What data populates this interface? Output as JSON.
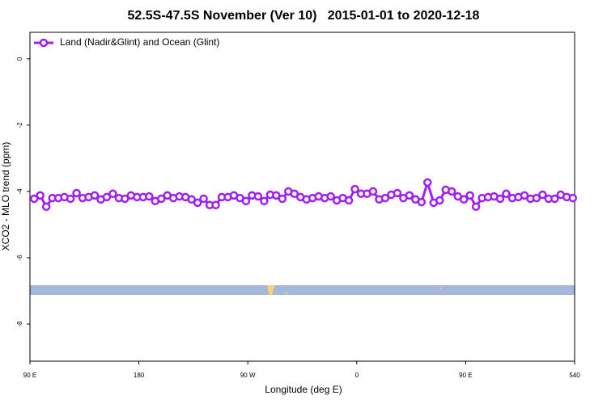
{
  "chart_data": {
    "type": "line",
    "title": "52.5S-47.5S November (Ver 10)   2015-01-01 to 2020-12-18",
    "x_label": "Longitude (deg E)",
    "y_label": "XCO2 - MLO trend (ppm)",
    "xlim": [
      90,
      540
    ],
    "ylim": [
      -9.12,
      0.8
    ],
    "xticks": [
      {
        "value": 90,
        "label": "90 E"
      },
      180,
      {
        "value": 270,
        "label": "90 W"
      },
      {
        "value": 360,
        "label": "0"
      },
      {
        "value": 450,
        "label": "90 E"
      },
      540
    ],
    "yticks": [
      0,
      -2,
      -4,
      -6,
      -8
    ],
    "legend": "top-left",
    "x": [
      93.5,
      98.5,
      103.5,
      108.5,
      113.5,
      118.5,
      123.5,
      128.5,
      133.5,
      138.5,
      143.5,
      148.5,
      153.5,
      158.5,
      163.5,
      168.5,
      173.5,
      178.5,
      183.5,
      188.5,
      193.5,
      198.5,
      203.5,
      208.5,
      213.5,
      218.5,
      223.5,
      228.5,
      233.5,
      238.5,
      243.5,
      248.5,
      253.5,
      258.5,
      263.5,
      268.5,
      273.5,
      278.5,
      283.5,
      288.5,
      293.5,
      298.5,
      303.5,
      308.5,
      313.5,
      318.5,
      323.5,
      328.5,
      333.5,
      338.5,
      343.5,
      348.5,
      353.5,
      358.5,
      363.5,
      368.5,
      373.5,
      378.5,
      383.5,
      388.5,
      393.5,
      398.5,
      403.5,
      408.5,
      413.5,
      418.5,
      423.5,
      428.5,
      433.5,
      438.5,
      443.5,
      448.5,
      453.5,
      458.5,
      463.5,
      468.5,
      473.5,
      478.5,
      483.5,
      488.5,
      493.5,
      498.5,
      503.5,
      508.5,
      513.5,
      518.5,
      523.5,
      528.5,
      533.5,
      538.5
    ],
    "series": [
      {
        "name": "Land (Nadir&Glint) and Ocean (Glint)",
        "color": "#a020f0",
        "values": [
          -4.22,
          -4.12,
          -4.46,
          -4.2,
          -4.2,
          -4.17,
          -4.22,
          -4.05,
          -4.2,
          -4.17,
          -4.12,
          -4.24,
          -4.17,
          -4.07,
          -4.2,
          -4.22,
          -4.12,
          -4.17,
          -4.17,
          -4.15,
          -4.29,
          -4.22,
          -4.12,
          -4.2,
          -4.15,
          -4.17,
          -4.24,
          -4.34,
          -4.22,
          -4.41,
          -4.41,
          -4.17,
          -4.17,
          -4.12,
          -4.2,
          -4.29,
          -4.12,
          -4.15,
          -4.29,
          -4.1,
          -4.12,
          -4.22,
          -4.0,
          -4.07,
          -4.17,
          -4.24,
          -4.2,
          -4.15,
          -4.2,
          -4.15,
          -4.27,
          -4.2,
          -4.27,
          -3.93,
          -4.07,
          -4.07,
          -4.0,
          -4.24,
          -4.2,
          -4.1,
          -4.05,
          -4.2,
          -4.12,
          -4.24,
          -4.32,
          -3.73,
          -4.34,
          -4.27,
          -3.95,
          -4.0,
          -4.15,
          -4.24,
          -4.12,
          -4.46,
          -4.2,
          -4.17,
          -4.15,
          -4.22,
          -4.07,
          -4.2,
          -4.17,
          -4.12,
          -4.22,
          -4.2,
          -4.1,
          -4.22,
          -4.22,
          -4.1,
          -4.17,
          -4.2
        ]
      }
    ]
  }
}
